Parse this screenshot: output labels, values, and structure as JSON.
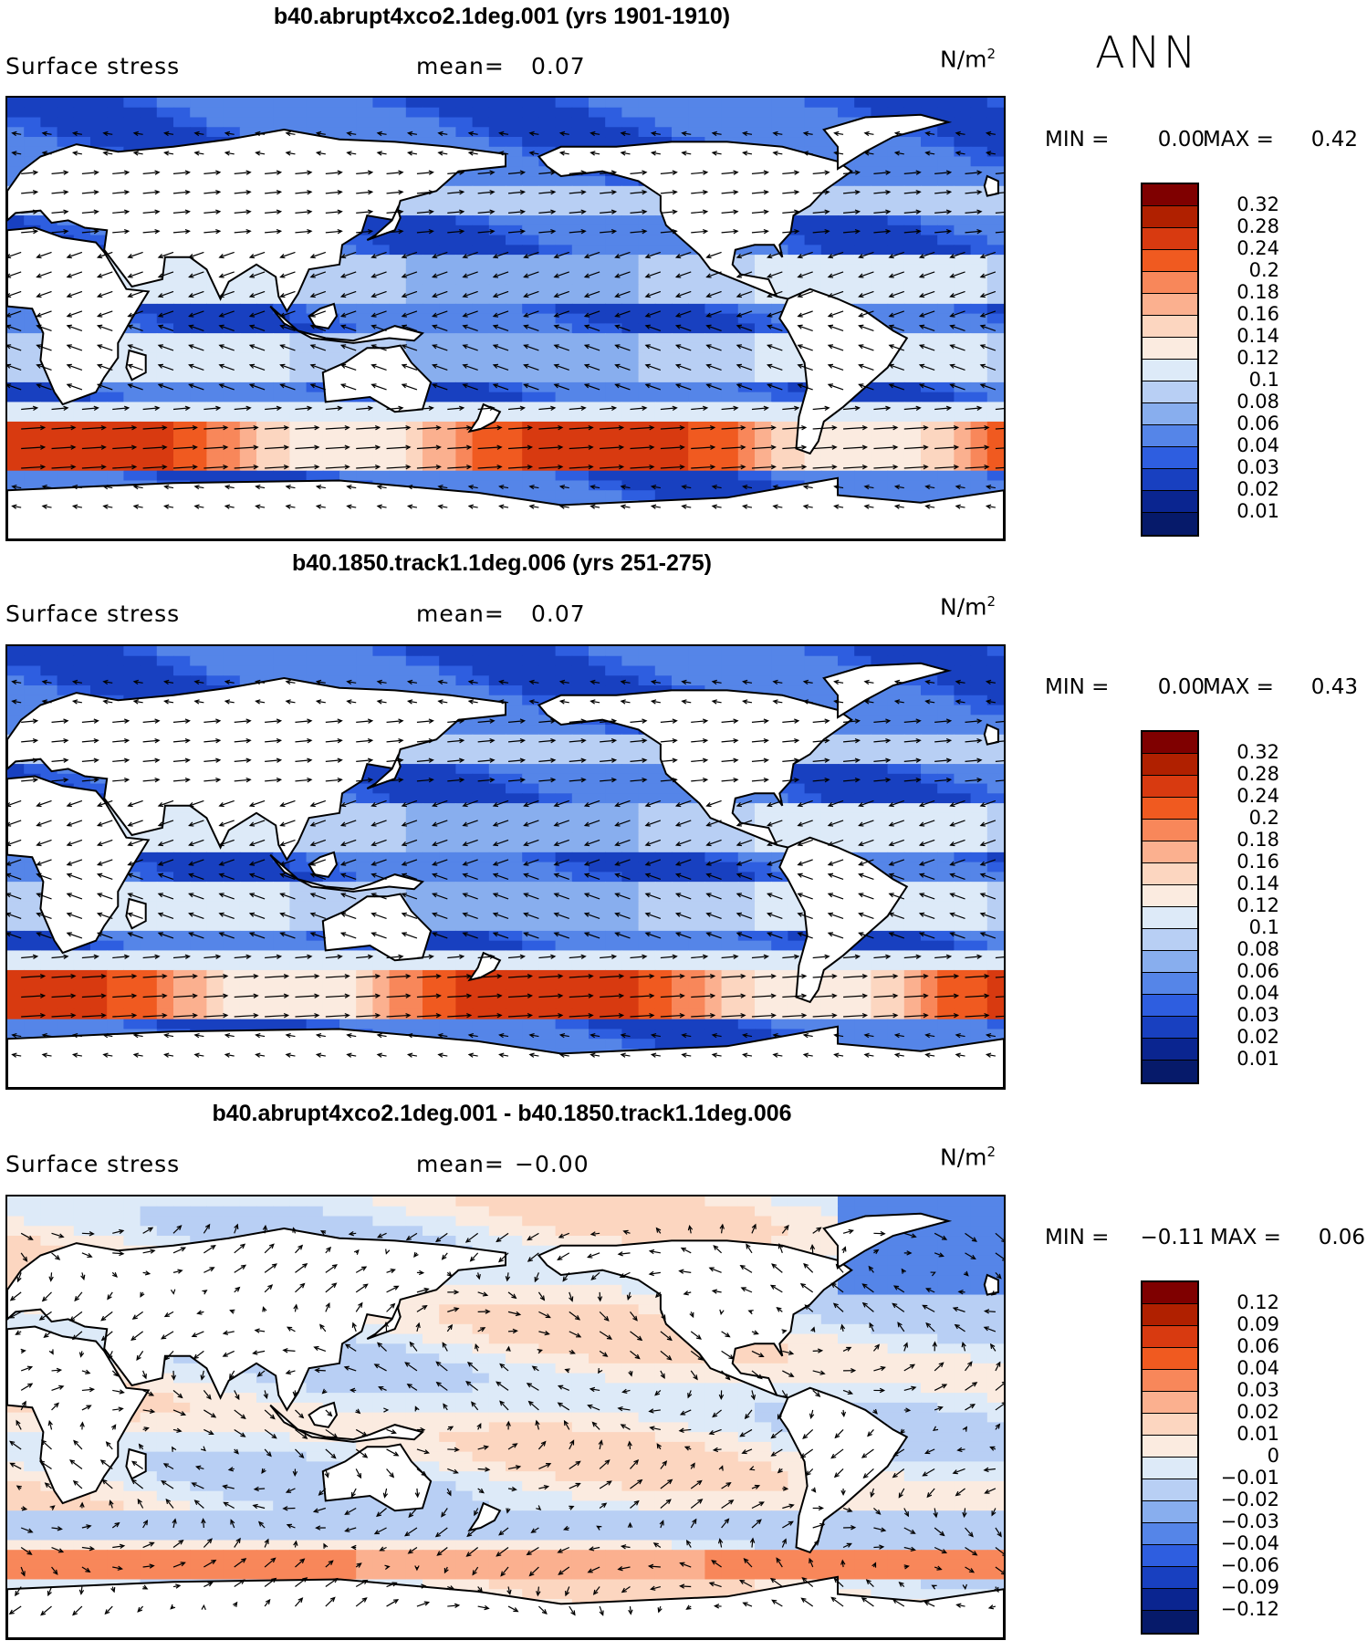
{
  "season": "ANN",
  "panels": [
    {
      "title": "b40.abrupt4xco2.1deg.001 (yrs 1901-1910)",
      "variable": "Surface stress",
      "mean_label": "mean=",
      "mean_value": "0.07",
      "units": "N/m",
      "units_exp": "2",
      "min_label": "MIN =",
      "min_value": "0.00",
      "max_label": "MAX =",
      "max_value": "0.42",
      "colorbar_labels": [
        "0.32",
        "0.28",
        "0.24",
        "0.2",
        "0.18",
        "0.16",
        "0.14",
        "0.12",
        "0.1",
        "0.08",
        "0.06",
        "0.04",
        "0.03",
        "0.02",
        "0.01"
      ]
    },
    {
      "title": "b40.1850.track1.1deg.006 (yrs 251-275)",
      "variable": "Surface stress",
      "mean_label": "mean=",
      "mean_value": "0.07",
      "units": "N/m",
      "units_exp": "2",
      "min_label": "MIN =",
      "min_value": "0.00",
      "max_label": "MAX =",
      "max_value": "0.43",
      "colorbar_labels": [
        "0.32",
        "0.28",
        "0.24",
        "0.2",
        "0.18",
        "0.16",
        "0.14",
        "0.12",
        "0.1",
        "0.08",
        "0.06",
        "0.04",
        "0.03",
        "0.02",
        "0.01"
      ]
    },
    {
      "title": "b40.abrupt4xco2.1deg.001 - b40.1850.track1.1deg.006",
      "variable": "Surface stress",
      "mean_label": "mean=",
      "mean_value": "−0.00",
      "units": "N/m",
      "units_exp": "2",
      "min_label": "MIN =",
      "min_value": "−0.11",
      "max_label": "MAX =",
      "max_value": "0.06",
      "colorbar_labels": [
        "0.12",
        "0.09",
        "0.06",
        "0.04",
        "0.03",
        "0.02",
        "0.01",
        "0",
        "−0.01",
        "−0.02",
        "−0.03",
        "−0.04",
        "−0.06",
        "−0.09",
        "−0.12"
      ]
    }
  ],
  "colors": {
    "abs_scale": [
      "#7f0000",
      "#b02000",
      "#d83a10",
      "#f05a20",
      "#f8875a",
      "#fbb08f",
      "#fcd6c0",
      "#fbebe0",
      "#ddeaf8",
      "#b8cff4",
      "#88aeee",
      "#5585e8",
      "#2e5ee0",
      "#1840c0",
      "#0a2590",
      "#061a6a"
    ],
    "diff_scale": [
      "#7f0000",
      "#b02000",
      "#d83a10",
      "#f05a20",
      "#f8875a",
      "#fbb08f",
      "#fcd6c0",
      "#fbebe0",
      "#ddeaf8",
      "#b8cff4",
      "#88aeee",
      "#5585e8",
      "#2e5ee0",
      "#1840c0",
      "#0a2590",
      "#061a6a"
    ],
    "land": "#ffffff",
    "coast": "#000000"
  }
}
